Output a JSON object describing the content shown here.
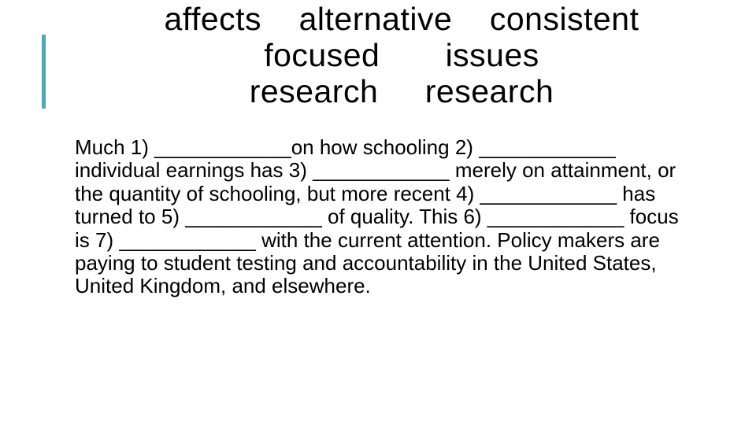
{
  "colors": {
    "background": "#ffffff",
    "text": "#000000",
    "accent_bar": "#4ea8b0"
  },
  "typography": {
    "word_bank_fontsize_pt": 31,
    "body_fontsize_pt": 20,
    "font_family": "Arial"
  },
  "word_bank": {
    "row1": [
      "affects",
      "alternative",
      "consistent"
    ],
    "row2": [
      "focused",
      "issues"
    ],
    "row3": [
      "research",
      "research"
    ]
  },
  "paragraph": {
    "segments": [
      "Much  1)",
      "on how schooling   2)",
      "individual  earnings has 3)",
      " merely on attainment, or the quantity of schooling, but more recent 4)",
      " has turned to  5)",
      " of quality. This 6) ",
      " focus is  7)",
      " with the current attention. Policy makers are paying to student testing and accountability in the United States, United Kingdom, and elsewhere."
    ],
    "blanks": [
      "____________",
      "____________",
      "____________",
      "____________",
      "____________",
      "____________",
      "____________"
    ]
  }
}
